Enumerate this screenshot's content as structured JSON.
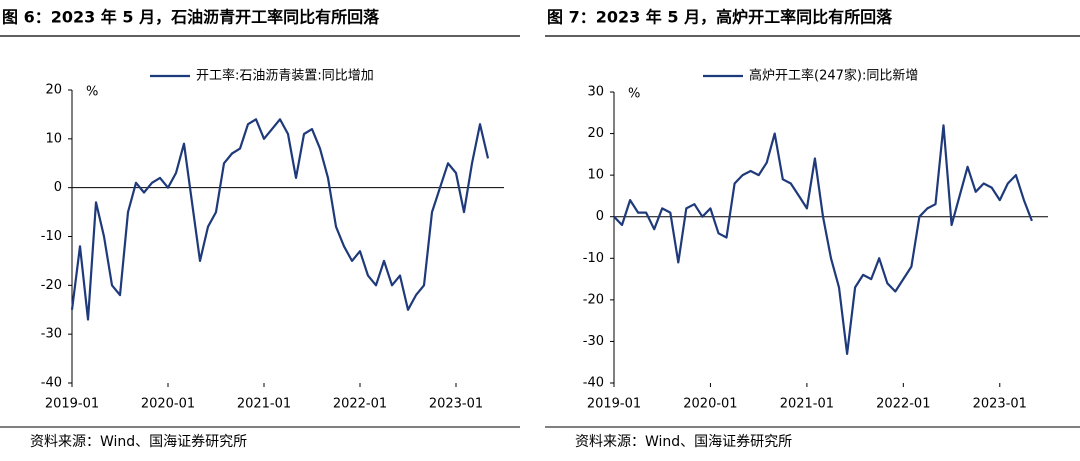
{
  "chart_data": [
    {
      "type": "line",
      "title": "图 6：2023 年 5 月，石油沥青开工率同比有所回落",
      "y_unit": "%",
      "source": "资料来源：Wind、国海证券研究所",
      "x": [
        "2019-01",
        "2019-02",
        "2019-03",
        "2019-04",
        "2019-05",
        "2019-06",
        "2019-07",
        "2019-08",
        "2019-09",
        "2019-10",
        "2019-11",
        "2019-12",
        "2020-01",
        "2020-02",
        "2020-03",
        "2020-04",
        "2020-05",
        "2020-06",
        "2020-07",
        "2020-08",
        "2020-09",
        "2020-10",
        "2020-11",
        "2020-12",
        "2021-01",
        "2021-02",
        "2021-03",
        "2021-04",
        "2021-05",
        "2021-06",
        "2021-07",
        "2021-08",
        "2021-09",
        "2021-10",
        "2021-11",
        "2021-12",
        "2022-01",
        "2022-02",
        "2022-03",
        "2022-04",
        "2022-05",
        "2022-06",
        "2022-07",
        "2022-08",
        "2022-09",
        "2022-10",
        "2022-11",
        "2022-12",
        "2023-01",
        "2023-02",
        "2023-03",
        "2023-04",
        "2023-05"
      ],
      "series": [
        {
          "name": "开工率:石油沥青装置:同比增加",
          "color": "#1f3a7a",
          "values": [
            -25,
            -12,
            -27,
            -3,
            -10,
            -20,
            -22,
            -5,
            1,
            -1,
            1,
            2,
            0,
            3,
            9,
            -3,
            -15,
            -8,
            -5,
            5,
            7,
            8,
            13,
            14,
            10,
            12,
            14,
            11,
            2,
            11,
            12,
            8,
            2,
            -8,
            -12,
            -15,
            -13,
            -18,
            -20,
            -15,
            -20,
            -18,
            -25,
            -22,
            -20,
            -5,
            0,
            5,
            3,
            -5,
            5,
            13,
            6
          ]
        }
      ],
      "xlim": [
        "2019-01",
        "2023-07"
      ],
      "xticks": [
        "2019-01",
        "2020-01",
        "2021-01",
        "2022-01",
        "2023-01"
      ],
      "ylim": [
        -40,
        20
      ],
      "yticks": [
        -40,
        -30,
        -20,
        -10,
        0,
        10,
        20
      ]
    },
    {
      "type": "line",
      "title": "图 7：2023 年 5 月，高炉开工率同比有所回落",
      "y_unit": "%",
      "source": "资料来源：Wind、国海证券研究所",
      "x": [
        "2019-01",
        "2019-02",
        "2019-03",
        "2019-04",
        "2019-05",
        "2019-06",
        "2019-07",
        "2019-08",
        "2019-09",
        "2019-10",
        "2019-11",
        "2019-12",
        "2020-01",
        "2020-02",
        "2020-03",
        "2020-04",
        "2020-05",
        "2020-06",
        "2020-07",
        "2020-08",
        "2020-09",
        "2020-10",
        "2020-11",
        "2020-12",
        "2021-01",
        "2021-02",
        "2021-03",
        "2021-04",
        "2021-05",
        "2021-06",
        "2021-07",
        "2021-08",
        "2021-09",
        "2021-10",
        "2021-11",
        "2021-12",
        "2022-01",
        "2022-02",
        "2022-03",
        "2022-04",
        "2022-05",
        "2022-06",
        "2022-07",
        "2022-08",
        "2022-09",
        "2022-10",
        "2022-11",
        "2022-12",
        "2023-01",
        "2023-02",
        "2023-03",
        "2023-04",
        "2023-05"
      ],
      "series": [
        {
          "name": "高炉开工率(247家):同比新增",
          "color": "#1f3a7a",
          "values": [
            0,
            -2,
            4,
            1,
            1,
            -3,
            2,
            1,
            -11,
            2,
            3,
            0,
            2,
            -4,
            -5,
            8,
            10,
            11,
            10,
            13,
            20,
            9,
            8,
            5,
            2,
            14,
            0,
            -10,
            -17,
            -33,
            -17,
            -14,
            -15,
            -10,
            -16,
            -18,
            -15,
            -12,
            0,
            2,
            3,
            22,
            -2,
            5,
            12,
            6,
            8,
            7,
            4,
            8,
            10,
            4,
            -1
          ]
        }
      ],
      "xlim": [
        "2019-01",
        "2023-07"
      ],
      "xticks": [
        "2019-01",
        "2020-01",
        "2021-01",
        "2022-01",
        "2023-01"
      ],
      "ylim": [
        -40,
        30
      ],
      "yticks": [
        -40,
        -30,
        -20,
        -10,
        0,
        10,
        20,
        30
      ]
    }
  ]
}
